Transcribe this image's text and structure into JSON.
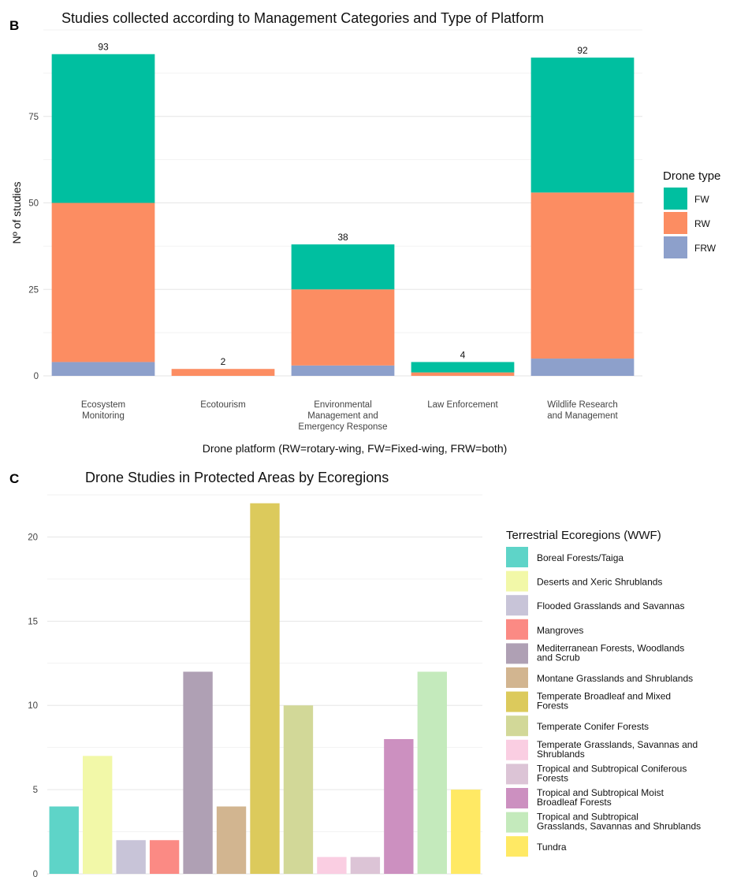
{
  "panel_b_letter": "B",
  "panel_c_letter": "C",
  "chart_data": [
    {
      "type": "bar",
      "stacked": true,
      "title": "Studies collected according to Management Categories and Type of Platform",
      "xlabel": "Drone platform (RW=rotary-wing, FW=Fixed-wing, FRW=both)",
      "ylabel": "Nº of studies",
      "ylim": [
        0,
        100
      ],
      "yticks": [
        0,
        25,
        50,
        75
      ],
      "grid": true,
      "categories": [
        [
          "Ecosystem",
          "Monitoring"
        ],
        [
          "Ecotourism"
        ],
        [
          "Environmental",
          "Management and",
          "Emergency Response"
        ],
        [
          "Law Enforcement"
        ],
        [
          "Wildlife Research",
          "and Management"
        ]
      ],
      "totals": [
        93,
        2,
        38,
        4,
        92
      ],
      "legend_title": "Drone type",
      "legend_position": "right",
      "series": [
        {
          "name": "FRW",
          "color": "#8DA0CB",
          "values": [
            4,
            0,
            3,
            0,
            5
          ]
        },
        {
          "name": "RW",
          "color": "#FC8D62",
          "values": [
            46,
            2,
            22,
            1,
            48
          ]
        },
        {
          "name": "FW",
          "color": "#00BFA0",
          "values": [
            43,
            0,
            13,
            3,
            39
          ]
        }
      ],
      "legend_order": [
        "FW",
        "RW",
        "FRW"
      ]
    },
    {
      "type": "bar",
      "title": "Drone Studies in Protected Areas by Ecoregions",
      "xlabel": "",
      "ylabel": "",
      "ylim": [
        0,
        22.5
      ],
      "yticks": [
        0,
        5,
        10,
        15,
        20
      ],
      "grid": true,
      "legend_title": "Terrestrial Ecoregions (WWF)",
      "legend_position": "right",
      "categories": [
        "Boreal Forests/Taiga",
        "Deserts and Xeric Shrublands",
        "Flooded Grasslands and Savannas",
        "Mangroves",
        "Mediterranean Forests, Woodlands and Scrub",
        "Montane Grasslands and Shrublands",
        "Temperate Broadleaf and Mixed Forests",
        "Temperate Conifer Forests",
        "Temperate Grasslands, Savannas and Shrublands",
        "Tropical and Subtropical Coniferous Forests",
        "Tropical and Subtropical Moist Broadleaf Forests",
        "Tropical and Subtropical Grasslands, Savannas and Shrublands",
        "Tundra"
      ],
      "legend_lines": [
        [
          "Boreal Forests/Taiga"
        ],
        [
          "Deserts and Xeric Shrublands"
        ],
        [
          "Flooded Grasslands and Savannas"
        ],
        [
          "Mangroves"
        ],
        [
          "Mediterranean Forests, Woodlands",
          "and Scrub"
        ],
        [
          "Montane Grasslands and Shrublands"
        ],
        [
          "Temperate Broadleaf and Mixed",
          "Forests"
        ],
        [
          "Temperate Conifer Forests"
        ],
        [
          "Temperate Grasslands, Savannas and",
          "Shrublands"
        ],
        [
          "Tropical and Subtropical Coniferous",
          "Forests"
        ],
        [
          "Tropical and Subtropical Moist",
          "Broadleaf Forests"
        ],
        [
          "Tropical and Subtropical",
          "Grasslands, Savannas and Shrublands"
        ],
        [
          "Tundra"
        ]
      ],
      "values": [
        4,
        7,
        2,
        2,
        12,
        4,
        22,
        10,
        1,
        1,
        8,
        12,
        5
      ],
      "colors": [
        "#5ED4C8",
        "#F2F8A8",
        "#C8C4D8",
        "#FB8A84",
        "#AFA0B4",
        "#D2B590",
        "#DCCA5C",
        "#D2D898",
        "#FACEE2",
        "#DCC4D6",
        "#CC90C0",
        "#C4EABC",
        "#FFE964"
      ]
    }
  ]
}
